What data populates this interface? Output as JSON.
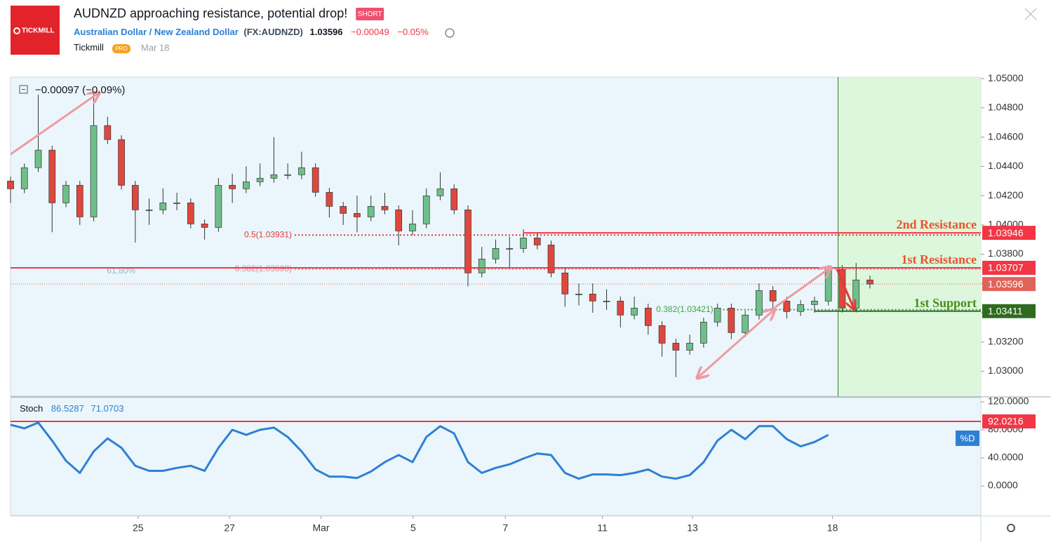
{
  "header": {
    "logo": "TICKMILL",
    "title": "AUDNZD approaching resistance, potential drop!",
    "tag": "SHORT",
    "instrument": "Australian Dollar / New Zealand Dollar",
    "symbol": "(FX:AUDNZD)",
    "price": "1.03596",
    "change": "−0.00049",
    "change_pct": "−0.05%",
    "author": "Tickmill",
    "badge": "PRO",
    "date": "Mar 18"
  },
  "chart_data": [
    {
      "type": "candlestick",
      "legend_text": "−0.00097 (−0.09%)",
      "up_color": "#6fbf8a",
      "down_color": "#e0473c",
      "xlim": [
        0,
        70
      ],
      "ylim": [
        1.0283,
        1.0501
      ],
      "xticks": [
        {
          "value": 9.2,
          "label": "25"
        },
        {
          "value": 15.8,
          "label": "27"
        },
        {
          "value": 22.4,
          "label": "Mar"
        },
        {
          "value": 29.05,
          "label": "5"
        },
        {
          "value": 35.7,
          "label": "7"
        },
        {
          "value": 42.7,
          "label": "11"
        },
        {
          "value": 49.2,
          "label": "13"
        },
        {
          "value": 59.3,
          "label": "18"
        }
      ],
      "yticks": [
        {
          "value": 1.05,
          "label": "1.05000"
        },
        {
          "value": 1.048,
          "label": "1.04800"
        },
        {
          "value": 1.046,
          "label": "1.04600"
        },
        {
          "value": 1.044,
          "label": "1.04400"
        },
        {
          "value": 1.042,
          "label": "1.04200"
        },
        {
          "value": 1.04,
          "label": "1.04000"
        },
        {
          "value": 1.038,
          "label": "1.03800"
        },
        {
          "value": 1.036,
          "label": "1.03600"
        },
        {
          "value": 1.034,
          "label": "1.03400"
        },
        {
          "value": 1.032,
          "label": "1.03200"
        },
        {
          "value": 1.03,
          "label": "1.03000"
        }
      ],
      "highlight_from": 59.7,
      "x": [
        0,
        1,
        2,
        3,
        4,
        5,
        6,
        7,
        8,
        9,
        10,
        11,
        12,
        13,
        14,
        15,
        16,
        17,
        18,
        19,
        20,
        21,
        22,
        23,
        24,
        25,
        26,
        27,
        28,
        29,
        30,
        31,
        32,
        33,
        34,
        35,
        36,
        37,
        38,
        39,
        40,
        41,
        42,
        43,
        44,
        45,
        46,
        47,
        48,
        49,
        50,
        51,
        52,
        53,
        54,
        55,
        56,
        57,
        58,
        59,
        60,
        61,
        62
      ],
      "ohlc": [
        [
          1.043,
          1.0433,
          1.0415,
          1.04247
        ],
        [
          1.04247,
          1.0442,
          1.04217,
          1.04391
        ],
        [
          1.04391,
          1.0489,
          1.04361,
          1.04511
        ],
        [
          1.04511,
          1.04541,
          1.0395,
          1.04151
        ],
        [
          1.04151,
          1.04301,
          1.04121,
          1.04271
        ],
        [
          1.04271,
          1.04301,
          1.04,
          1.04055
        ],
        [
          1.04055,
          1.049,
          1.04025,
          1.04679
        ],
        [
          1.04679,
          1.0474,
          1.04553,
          1.04583
        ],
        [
          1.04583,
          1.04613,
          1.04241,
          1.04271
        ],
        [
          1.04271,
          1.04301,
          1.0388,
          1.04103
        ],
        [
          1.04103,
          1.0418,
          1.04,
          1.04103
        ],
        [
          1.04103,
          1.0425,
          1.04073,
          1.04151
        ],
        [
          1.04151,
          1.0422,
          1.041,
          1.04151
        ],
        [
          1.04151,
          1.04181,
          1.03977,
          1.04007
        ],
        [
          1.04007,
          1.04037,
          1.039,
          1.03983
        ],
        [
          1.03983,
          1.0432,
          1.03953,
          1.04271
        ],
        [
          1.04271,
          1.0435,
          1.0415,
          1.04247
        ],
        [
          1.04247,
          1.044,
          1.04217,
          1.04295
        ],
        [
          1.04295,
          1.0442,
          1.04265,
          1.04319
        ],
        [
          1.04319,
          1.046,
          1.04289,
          1.04343
        ],
        [
          1.04343,
          1.0442,
          1.04313,
          1.04343
        ],
        [
          1.04343,
          1.045,
          1.04313,
          1.04391
        ],
        [
          1.04391,
          1.04421,
          1.04193,
          1.04223
        ],
        [
          1.04223,
          1.04253,
          1.0405,
          1.04127
        ],
        [
          1.04127,
          1.04157,
          1.04,
          1.04079
        ],
        [
          1.04079,
          1.042,
          1.0395,
          1.04055
        ],
        [
          1.04055,
          1.042,
          1.04025,
          1.04127
        ],
        [
          1.04127,
          1.0422,
          1.04073,
          1.04103
        ],
        [
          1.04103,
          1.04133,
          1.0386,
          1.03959
        ],
        [
          1.03959,
          1.041,
          1.03929,
          1.04007
        ],
        [
          1.04007,
          1.0425,
          1.03977,
          1.04199
        ],
        [
          1.04199,
          1.0436,
          1.04169,
          1.04247
        ],
        [
          1.04247,
          1.04277,
          1.04073,
          1.04103
        ],
        [
          1.04103,
          1.04133,
          1.0358,
          1.03672
        ],
        [
          1.03672,
          1.0385,
          1.03642,
          1.03767
        ],
        [
          1.03767,
          1.039,
          1.03737,
          1.03839
        ],
        [
          1.03839,
          1.0392,
          1.037,
          1.03839
        ],
        [
          1.03839,
          1.0397,
          1.03809,
          1.03911
        ],
        [
          1.03911,
          1.03941,
          1.03833,
          1.03863
        ],
        [
          1.03863,
          1.03893,
          1.03642,
          1.03672
        ],
        [
          1.03672,
          1.03702,
          1.0344,
          1.03528
        ],
        [
          1.03528,
          1.036,
          1.0345,
          1.03528
        ],
        [
          1.03528,
          1.036,
          1.034,
          1.0348
        ],
        [
          1.0348,
          1.0356,
          1.0342,
          1.0348
        ],
        [
          1.0348,
          1.0351,
          1.033,
          1.03384
        ],
        [
          1.03384,
          1.0351,
          1.03354,
          1.03432
        ],
        [
          1.03432,
          1.03462,
          1.0325,
          1.03312
        ],
        [
          1.03312,
          1.03342,
          1.031,
          1.03192
        ],
        [
          1.03192,
          1.03222,
          1.0296,
          1.03144
        ],
        [
          1.03144,
          1.0325,
          1.03114,
          1.03192
        ],
        [
          1.03192,
          1.03366,
          1.03162,
          1.03336
        ],
        [
          1.03336,
          1.03462,
          1.03306,
          1.03432
        ],
        [
          1.03432,
          1.03462,
          1.0322,
          1.03264
        ],
        [
          1.03264,
          1.03414,
          1.03234,
          1.03384
        ],
        [
          1.03384,
          1.036,
          1.03354,
          1.03552
        ],
        [
          1.03552,
          1.03582,
          1.0342,
          1.0348
        ],
        [
          1.0348,
          1.0351,
          1.0336,
          1.03408
        ],
        [
          1.03408,
          1.03486,
          1.03378,
          1.03456
        ],
        [
          1.03456,
          1.0351,
          1.034,
          1.0348
        ],
        [
          1.0348,
          1.03725,
          1.0345,
          1.03695
        ],
        [
          1.03695,
          1.03725,
          1.03402,
          1.03432
        ],
        [
          1.03432,
          1.0374,
          1.03402,
          1.03624
        ],
        [
          1.03624,
          1.03654,
          1.03566,
          1.03596
        ]
      ],
      "levels": [
        {
          "name": "2nd Resistance",
          "value": 1.03946,
          "from": 37,
          "color": "#f23645",
          "text_color": "#e8542c"
        },
        {
          "name": "1st Resistance",
          "value": 1.03707,
          "from": 0,
          "color": "#f23645",
          "text_color": "#e8542c"
        },
        {
          "name": "1st Support",
          "value": 1.03411,
          "from": 58,
          "color": "#2e6b1f",
          "text_color": "#4a8c1a"
        }
      ],
      "last_price": {
        "value": 1.03596,
        "color": "#e0635a"
      },
      "fib_levels": [
        {
          "label": "0.5(1.03931)",
          "value": 1.03931,
          "from": 20.5,
          "color": "#e53935"
        },
        {
          "label": "0.382(1.03698)",
          "value": 1.03698,
          "from": 20.5,
          "color": "#ef8a98",
          "note": "61.80%"
        },
        {
          "label": "0.382(1.03421)",
          "value": 1.03421,
          "from": 50.9,
          "color": "#43a047"
        }
      ]
    },
    {
      "type": "line",
      "title": "Stoch",
      "legend_values": [
        "86.5287",
        "71.0703"
      ],
      "badge": "%D",
      "xlim": [
        0,
        70
      ],
      "ylim": [
        -42,
        126
      ],
      "yticks": [
        {
          "value": 120,
          "label": "120.0000"
        },
        {
          "value": 80,
          "label": "80.0000"
        },
        {
          "value": 40,
          "label": "40.0000"
        },
        {
          "value": 0,
          "label": "0.0000"
        }
      ],
      "level": {
        "value": 92.0216,
        "color": "#f23645"
      },
      "x": [
        0,
        1,
        2,
        3,
        4,
        5,
        6,
        7,
        8,
        9,
        10,
        11,
        12,
        13,
        14,
        15,
        16,
        17,
        18,
        19,
        20,
        21,
        22,
        23,
        24,
        25,
        26,
        27,
        28,
        29,
        30,
        31,
        32,
        33,
        34,
        35,
        36,
        37,
        38,
        39,
        40,
        41,
        42,
        43,
        44,
        45,
        46,
        47,
        48,
        49,
        50,
        51,
        52,
        53,
        54,
        55,
        56,
        57,
        58,
        59
      ],
      "series": [
        {
          "color": "#2f7fd4",
          "values": [
            87.2,
            82.1,
            90.3,
            64.6,
            35.9,
            18.5,
            49.2,
            67.7,
            54.4,
            28.7,
            21.5,
            21.5,
            25.7,
            28.7,
            21.5,
            54.4,
            80.0,
            72.8,
            80.0,
            83.1,
            69.8,
            49.2,
            23.6,
            13.3,
            13.3,
            11.3,
            20.5,
            33.9,
            44.1,
            33.9,
            69.8,
            85.2,
            74.9,
            33.9,
            18.5,
            25.7,
            30.8,
            39.0,
            46.2,
            44.1,
            18.5,
            10.3,
            16.4,
            16.4,
            15.4,
            18.5,
            23.6,
            13.3,
            10.3,
            15.4,
            33.9,
            64.6,
            80.0,
            66.7,
            85.2,
            85.2,
            66.7,
            56.4,
            62.6,
            72.8
          ]
        }
      ]
    }
  ]
}
